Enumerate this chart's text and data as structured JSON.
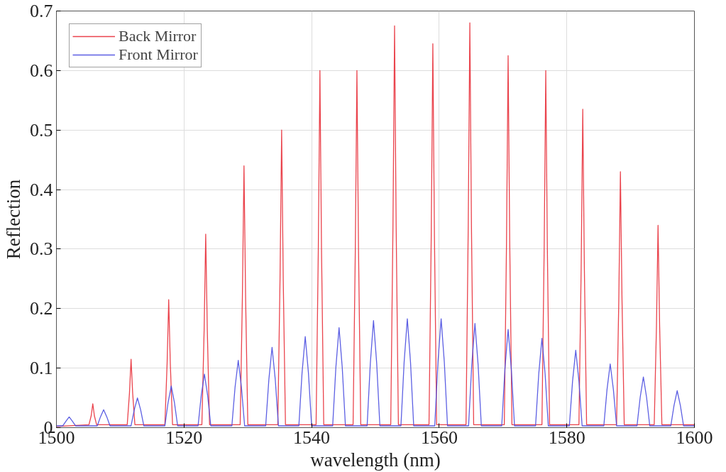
{
  "chart_data": {
    "type": "line",
    "xlabel": "wavelength (nm)",
    "ylabel": "Reflection",
    "xlim": [
      1500,
      1600
    ],
    "xticks": [
      1500,
      1520,
      1540,
      1560,
      1580,
      1600
    ],
    "ylim": [
      0,
      0.7
    ],
    "yticks": [
      0,
      0.1,
      0.2,
      0.3,
      0.4,
      0.5,
      0.6,
      0.7
    ],
    "grid": true,
    "legend": "top left",
    "line_style": "solid",
    "marker": "none",
    "series": [
      {
        "name": "Back Mirror",
        "color": "#e8303a",
        "x": [
          1500,
          1505.1,
          1505.45,
          1505.7,
          1505.95,
          1506.3,
          1511.1,
          1511.45,
          1511.7,
          1511.95,
          1512.3,
          1517.0,
          1517.35,
          1517.6,
          1517.85,
          1518.2,
          1522.8,
          1523.15,
          1523.4,
          1523.65,
          1524.0,
          1528.8,
          1529.15,
          1529.4,
          1529.65,
          1530.0,
          1534.7,
          1535.05,
          1535.3,
          1535.55,
          1535.9,
          1540.7,
          1541.05,
          1541.3,
          1541.55,
          1541.9,
          1546.5,
          1546.85,
          1547.1,
          1547.35,
          1547.7,
          1552.4,
          1552.75,
          1553.0,
          1553.25,
          1553.6,
          1558.4,
          1558.75,
          1559.0,
          1559.25,
          1559.6,
          1564.2,
          1564.55,
          1564.8,
          1565.05,
          1565.4,
          1570.2,
          1570.55,
          1570.8,
          1571.05,
          1571.4,
          1576.1,
          1576.45,
          1576.7,
          1576.95,
          1577.3,
          1581.9,
          1582.25,
          1582.5,
          1582.75,
          1583.1,
          1587.8,
          1588.15,
          1588.4,
          1588.65,
          1589.0,
          1593.7,
          1594.05,
          1594.3,
          1594.55,
          1594.9,
          1600
        ],
        "values": [
          0.002,
          0.005,
          0.02,
          0.04,
          0.02,
          0.005,
          0.005,
          0.058,
          0.115,
          0.058,
          0.005,
          0.005,
          0.108,
          0.215,
          0.108,
          0.005,
          0.005,
          0.163,
          0.325,
          0.163,
          0.005,
          0.005,
          0.22,
          0.44,
          0.22,
          0.005,
          0.005,
          0.25,
          0.5,
          0.25,
          0.005,
          0.005,
          0.3,
          0.6,
          0.3,
          0.005,
          0.005,
          0.3,
          0.6,
          0.3,
          0.005,
          0.005,
          0.338,
          0.675,
          0.338,
          0.005,
          0.005,
          0.323,
          0.645,
          0.323,
          0.005,
          0.005,
          0.34,
          0.68,
          0.34,
          0.005,
          0.005,
          0.313,
          0.625,
          0.313,
          0.005,
          0.005,
          0.3,
          0.6,
          0.3,
          0.005,
          0.005,
          0.268,
          0.535,
          0.268,
          0.005,
          0.005,
          0.215,
          0.43,
          0.215,
          0.005,
          0.005,
          0.17,
          0.34,
          0.17,
          0.005,
          0.005
        ]
      },
      {
        "name": "Front Mirror",
        "color": "#4a4ee0",
        "x": [
          1500,
          1501.0,
          1501.5,
          1502.0,
          1502.5,
          1503.0,
          1506.4,
          1506.9,
          1507.4,
          1507.9,
          1508.4,
          1511.7,
          1512.2,
          1512.7,
          1513.2,
          1513.7,
          1517.0,
          1517.5,
          1518.0,
          1518.5,
          1519.0,
          1522.2,
          1522.7,
          1523.2,
          1523.7,
          1524.2,
          1527.5,
          1528.0,
          1528.5,
          1529.0,
          1529.5,
          1532.8,
          1533.3,
          1533.8,
          1534.3,
          1534.8,
          1538.0,
          1538.5,
          1539.0,
          1539.5,
          1540.0,
          1543.3,
          1543.8,
          1544.3,
          1544.8,
          1545.3,
          1548.7,
          1549.2,
          1549.7,
          1550.2,
          1550.7,
          1554.0,
          1554.5,
          1555.0,
          1555.5,
          1556.0,
          1559.3,
          1559.8,
          1560.3,
          1560.8,
          1561.3,
          1564.6,
          1565.1,
          1565.6,
          1566.1,
          1566.6,
          1569.8,
          1570.3,
          1570.8,
          1571.3,
          1571.8,
          1575.1,
          1575.6,
          1576.1,
          1576.6,
          1577.1,
          1580.4,
          1580.9,
          1581.4,
          1581.9,
          1582.4,
          1585.8,
          1586.3,
          1586.8,
          1587.3,
          1587.8,
          1591.0,
          1591.5,
          1592.0,
          1592.5,
          1593.0,
          1596.3,
          1596.8,
          1597.3,
          1597.8,
          1598.3,
          1600
        ],
        "values": [
          0.003,
          0.003,
          0.011,
          0.018,
          0.011,
          0.003,
          0.003,
          0.018,
          0.03,
          0.018,
          0.003,
          0.003,
          0.03,
          0.05,
          0.03,
          0.003,
          0.003,
          0.042,
          0.07,
          0.042,
          0.003,
          0.003,
          0.054,
          0.09,
          0.054,
          0.003,
          0.003,
          0.068,
          0.113,
          0.068,
          0.003,
          0.003,
          0.081,
          0.135,
          0.081,
          0.003,
          0.003,
          0.092,
          0.153,
          0.092,
          0.003,
          0.003,
          0.101,
          0.168,
          0.101,
          0.003,
          0.003,
          0.108,
          0.18,
          0.108,
          0.003,
          0.003,
          0.11,
          0.183,
          0.11,
          0.003,
          0.003,
          0.11,
          0.183,
          0.11,
          0.003,
          0.003,
          0.105,
          0.175,
          0.105,
          0.003,
          0.003,
          0.099,
          0.165,
          0.099,
          0.003,
          0.003,
          0.09,
          0.15,
          0.09,
          0.003,
          0.003,
          0.078,
          0.13,
          0.078,
          0.003,
          0.003,
          0.064,
          0.107,
          0.064,
          0.003,
          0.003,
          0.051,
          0.085,
          0.051,
          0.003,
          0.003,
          0.037,
          0.062,
          0.037,
          0.003,
          0.003
        ]
      }
    ]
  }
}
